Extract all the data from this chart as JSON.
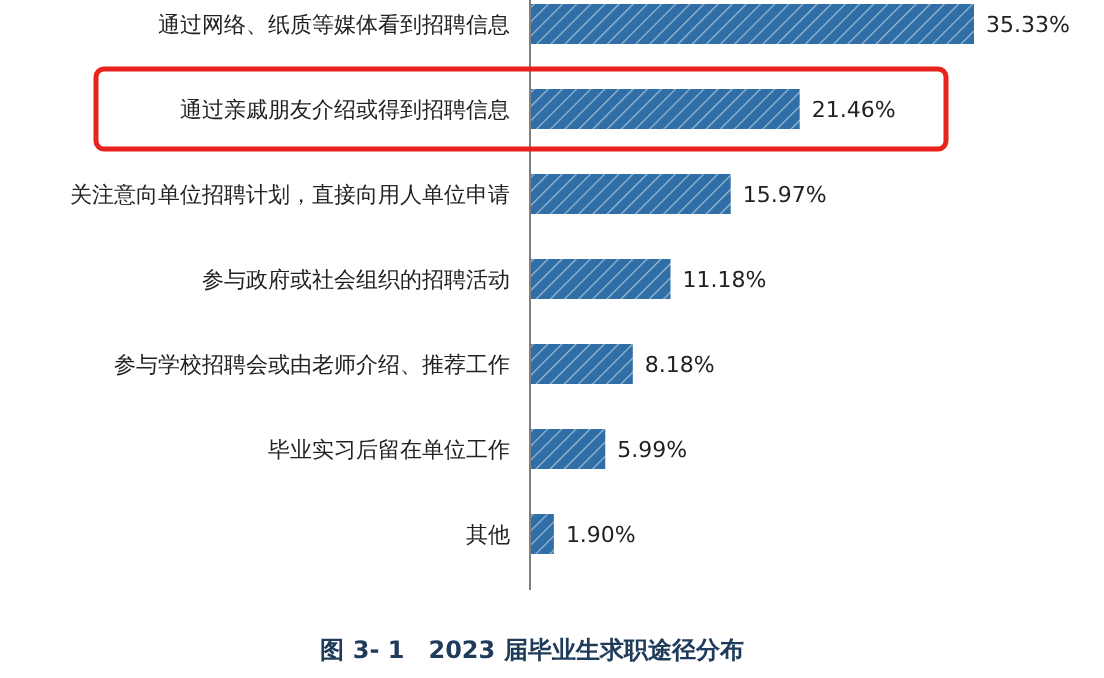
{
  "chart_data": {
    "type": "bar",
    "orientation": "horizontal",
    "title": "图 3- 1　2023 届毕业生求职途径分布",
    "categories": [
      "通过网络、纸质等媒体看到招聘信息",
      "通过亲戚朋友介绍或得到招聘信息",
      "关注意向单位招聘计划，直接向用人单位申请",
      "参与政府或社会组织的招聘活动",
      "参与学校招聘会或由老师介绍、推荐工作",
      "毕业实习后留在单位工作",
      "其他"
    ],
    "values": [
      35.33,
      21.46,
      15.97,
      11.18,
      8.18,
      5.99,
      1.9
    ],
    "value_labels": [
      "35.33%",
      "21.46%",
      "15.97%",
      "11.18%",
      "8.18%",
      "5.99%",
      "1.90%"
    ],
    "color": "#2f6ea6"
  }
}
